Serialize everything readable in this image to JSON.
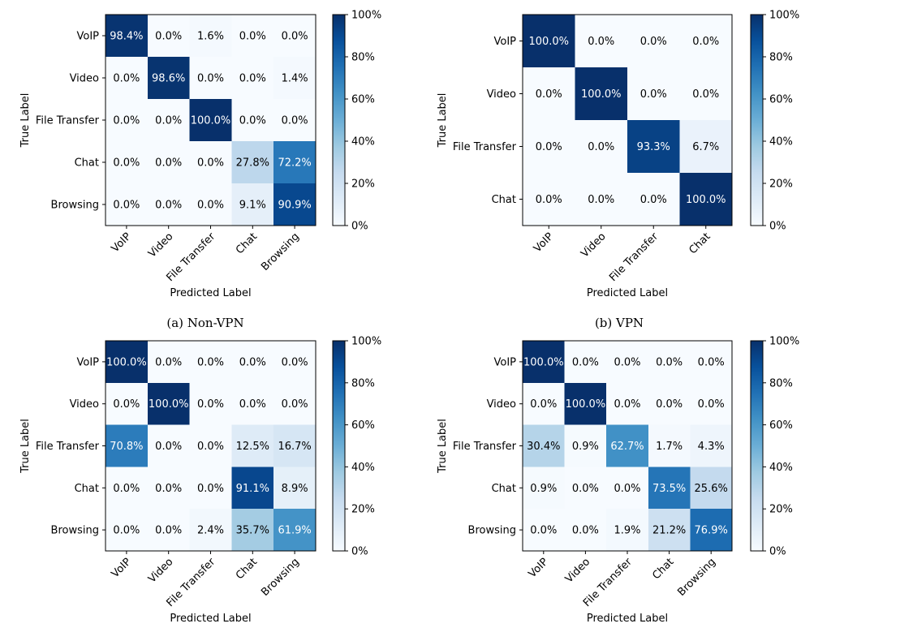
{
  "chart_data": [
    {
      "type": "heatmap",
      "caption": "(a) Non-VPN",
      "xlabel": "Predicted Label",
      "ylabel": "True Label",
      "categories": [
        "VoIP",
        "Video",
        "File Transfer",
        "Chat",
        "Browsing"
      ],
      "values": [
        [
          98.4,
          0.0,
          1.6,
          0.0,
          0.0
        ],
        [
          0.0,
          98.6,
          0.0,
          0.0,
          1.4
        ],
        [
          0.0,
          0.0,
          100.0,
          0.0,
          0.0
        ],
        [
          0.0,
          0.0,
          0.0,
          27.8,
          72.2
        ],
        [
          0.0,
          0.0,
          0.0,
          9.1,
          90.9
        ]
      ],
      "labels": [
        [
          "98.4%",
          "0.0%",
          "1.6%",
          "0.0%",
          "0.0%"
        ],
        [
          "0.0%",
          "98.6%",
          "0.0%",
          "0.0%",
          "1.4%"
        ],
        [
          "0.0%",
          "0.0%",
          "100.0%",
          "0.0%",
          "0.0%"
        ],
        [
          "0.0%",
          "0.0%",
          "0.0%",
          "27.8%",
          "72.2%"
        ],
        [
          "0.0%",
          "0.0%",
          "0.0%",
          "9.1%",
          "90.9%"
        ]
      ],
      "colorbar": {
        "range": [
          0,
          100
        ],
        "ticks": [
          "0%",
          "20%",
          "40%",
          "60%",
          "80%",
          "100%"
        ]
      }
    },
    {
      "type": "heatmap",
      "caption": "(b) VPN",
      "xlabel": "Predicted Label",
      "ylabel": "True Label",
      "categories": [
        "VoIP",
        "Video",
        "File Transfer",
        "Chat"
      ],
      "values": [
        [
          100.0,
          0.0,
          0.0,
          0.0
        ],
        [
          0.0,
          100.0,
          0.0,
          0.0
        ],
        [
          0.0,
          0.0,
          93.3,
          6.7
        ],
        [
          0.0,
          0.0,
          0.0,
          100.0
        ]
      ],
      "labels": [
        [
          "100.0%",
          "0.0%",
          "0.0%",
          "0.0%"
        ],
        [
          "0.0%",
          "100.0%",
          "0.0%",
          "0.0%"
        ],
        [
          "0.0%",
          "0.0%",
          "93.3%",
          "6.7%"
        ],
        [
          "0.0%",
          "0.0%",
          "0.0%",
          "100.0%"
        ]
      ],
      "colorbar": {
        "range": [
          0,
          100
        ],
        "ticks": [
          "0%",
          "20%",
          "40%",
          "60%",
          "80%",
          "100%"
        ]
      }
    },
    {
      "type": "heatmap",
      "caption": "",
      "xlabel": "Predicted Label",
      "ylabel": "True Label",
      "categories": [
        "VoIP",
        "Video",
        "File Transfer",
        "Chat",
        "Browsing"
      ],
      "values": [
        [
          100.0,
          0.0,
          0.0,
          0.0,
          0.0
        ],
        [
          0.0,
          100.0,
          0.0,
          0.0,
          0.0
        ],
        [
          70.8,
          0.0,
          0.0,
          12.5,
          16.7
        ],
        [
          0.0,
          0.0,
          0.0,
          91.1,
          8.9
        ],
        [
          0.0,
          0.0,
          2.4,
          35.7,
          61.9
        ]
      ],
      "labels": [
        [
          "100.0%",
          "0.0%",
          "0.0%",
          "0.0%",
          "0.0%"
        ],
        [
          "0.0%",
          "100.0%",
          "0.0%",
          "0.0%",
          "0.0%"
        ],
        [
          "70.8%",
          "0.0%",
          "0.0%",
          "12.5%",
          "16.7%"
        ],
        [
          "0.0%",
          "0.0%",
          "0.0%",
          "91.1%",
          "8.9%"
        ],
        [
          "0.0%",
          "0.0%",
          "2.4%",
          "35.7%",
          "61.9%"
        ]
      ],
      "colorbar": {
        "range": [
          0,
          100
        ],
        "ticks": [
          "0%",
          "20%",
          "40%",
          "60%",
          "80%",
          "100%"
        ]
      }
    },
    {
      "type": "heatmap",
      "caption": "",
      "xlabel": "Predicted Label",
      "ylabel": "True Label",
      "categories": [
        "VoIP",
        "Video",
        "File Transfer",
        "Chat",
        "Browsing"
      ],
      "values": [
        [
          100.0,
          0.0,
          0.0,
          0.0,
          0.0
        ],
        [
          0.0,
          100.0,
          0.0,
          0.0,
          0.0
        ],
        [
          30.4,
          0.9,
          62.7,
          1.7,
          4.3
        ],
        [
          0.9,
          0.0,
          0.0,
          73.5,
          25.6
        ],
        [
          0.0,
          0.0,
          1.9,
          21.2,
          76.9
        ]
      ],
      "labels": [
        [
          "100.0%",
          "0.0%",
          "0.0%",
          "0.0%",
          "0.0%"
        ],
        [
          "0.0%",
          "100.0%",
          "0.0%",
          "0.0%",
          "0.0%"
        ],
        [
          "30.4%",
          "0.9%",
          "62.7%",
          "1.7%",
          "4.3%"
        ],
        [
          "0.9%",
          "0.0%",
          "0.0%",
          "73.5%",
          "25.6%"
        ],
        [
          "0.0%",
          "0.0%",
          "1.9%",
          "21.2%",
          "76.9%"
        ]
      ],
      "colorbar": {
        "range": [
          0,
          100
        ],
        "ticks": [
          "0%",
          "20%",
          "40%",
          "60%",
          "80%",
          "100%"
        ]
      }
    }
  ]
}
